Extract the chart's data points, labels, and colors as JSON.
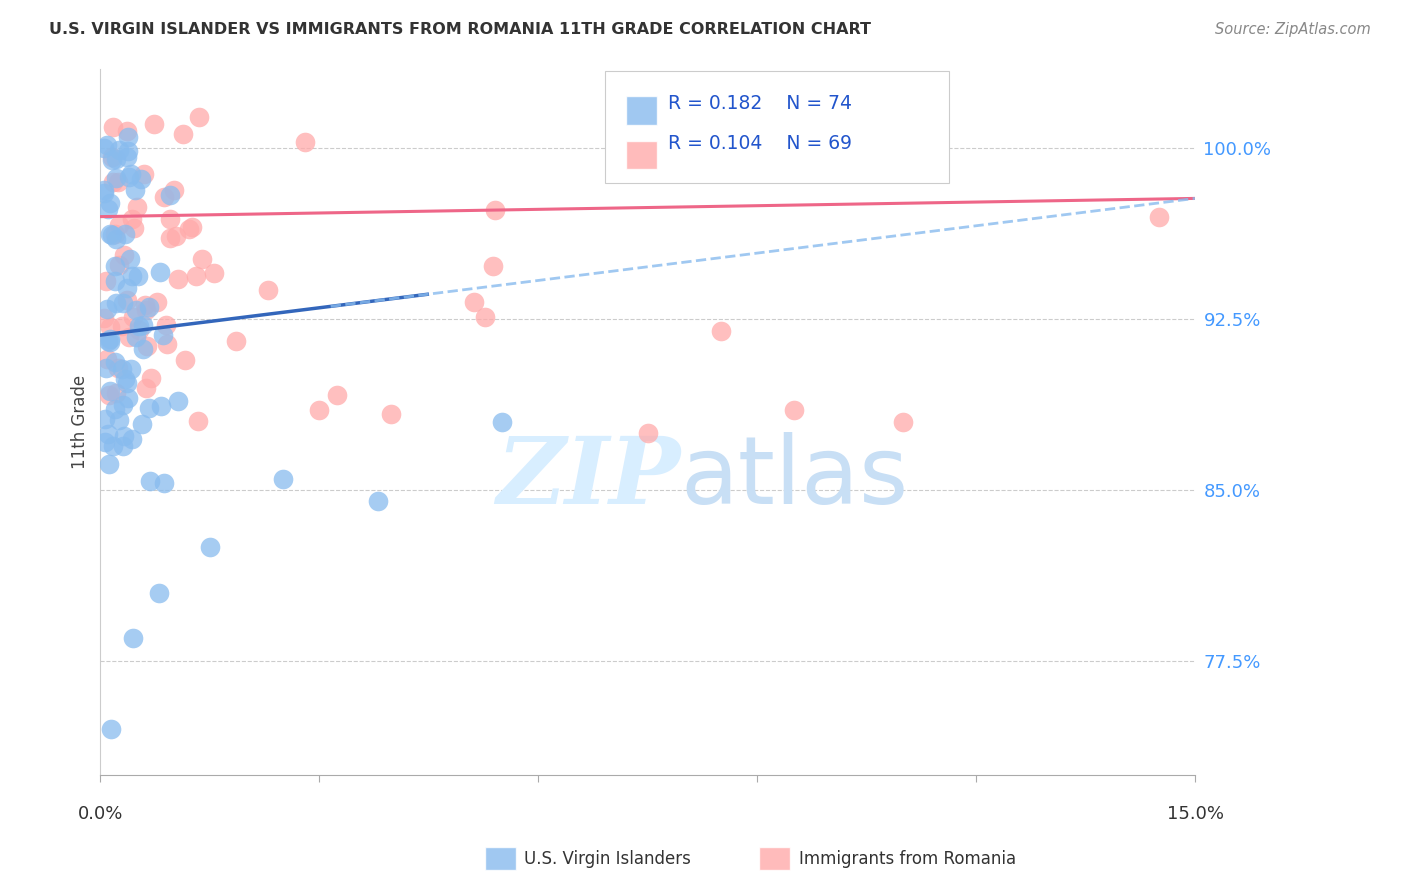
{
  "title": "U.S. VIRGIN ISLANDER VS IMMIGRANTS FROM ROMANIA 11TH GRADE CORRELATION CHART",
  "source": "Source: ZipAtlas.com",
  "ylabel": "11th Grade",
  "xmin": 0.0,
  "xmax": 15.0,
  "ymin": 72.5,
  "ymax": 103.5,
  "yticks": [
    77.5,
    85.0,
    92.5,
    100.0
  ],
  "ytick_labels": [
    "77.5%",
    "85.0%",
    "92.5%",
    "100.0%"
  ],
  "legend_blue_r": "R = 0.182",
  "legend_blue_n": "N = 74",
  "legend_pink_r": "R = 0.104",
  "legend_pink_n": "N = 69",
  "blue_scatter_color": "#88BBEE",
  "pink_scatter_color": "#FFAAAA",
  "blue_line_color": "#3366BB",
  "pink_line_color": "#EE6688",
  "dashed_line_color": "#88BBEE",
  "ytick_color": "#4499FF",
  "watermark_color": "#D8EEFF",
  "legend_text_color": "#2255CC",
  "title_color": "#333333",
  "source_color": "#888888",
  "blue_trend_x0": 0.0,
  "blue_trend_y0": 91.8,
  "blue_trend_x1": 15.0,
  "blue_trend_y1": 97.8,
  "blue_solid_x1": 4.5,
  "pink_trend_x0": 0.0,
  "pink_trend_y0": 97.0,
  "pink_trend_x1": 15.0,
  "pink_trend_y1": 97.8
}
